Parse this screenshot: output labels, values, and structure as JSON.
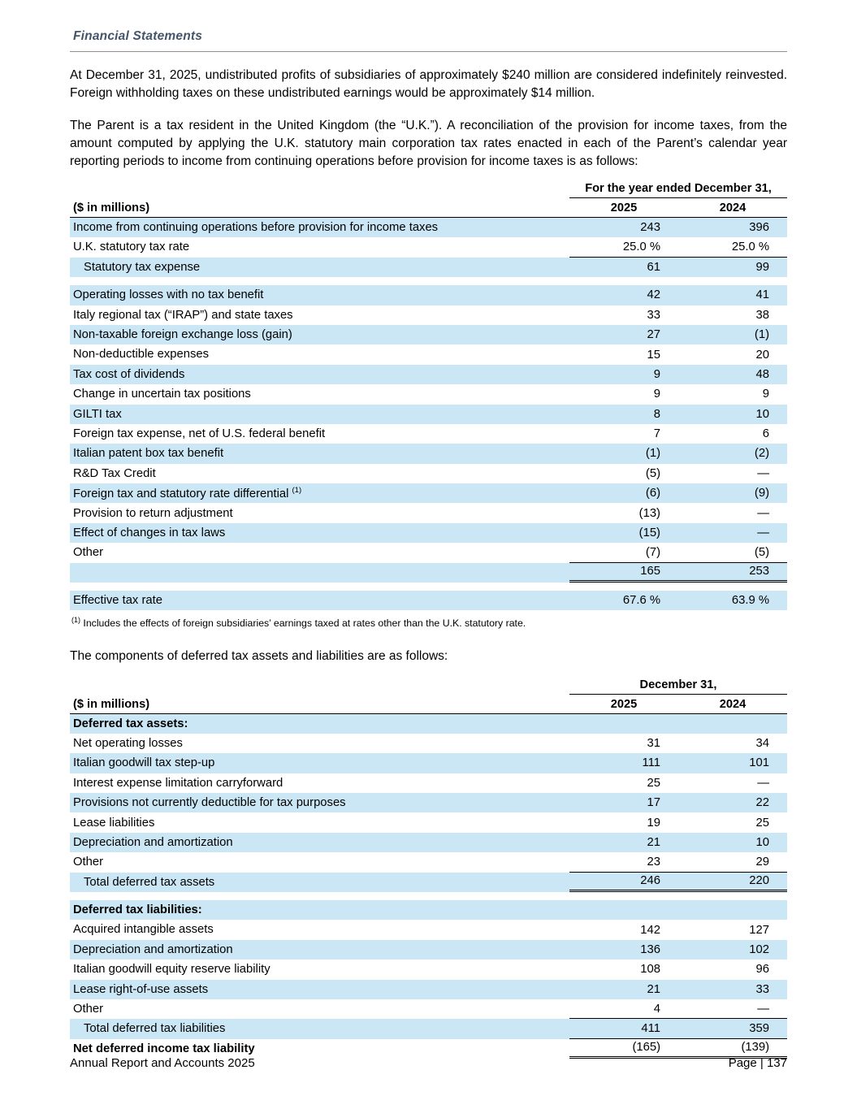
{
  "page": {
    "header_title": "Financial Statements",
    "footer_left": "Annual Report and Accounts 2025",
    "footer_right": "Page | 137"
  },
  "colors": {
    "row_highlight": "#cbe7f5",
    "header_title": "#44546a"
  },
  "paragraphs": {
    "p1": "At December 31, 2025, undistributed profits of subsidiaries of approximately $240 million are considered indefinitely reinvested. Foreign withholding taxes on these undistributed earnings would be approximately $14 million.",
    "p2": "The Parent is a tax resident in the United Kingdom (the “U.K.”). A reconciliation of the provision for income taxes, from the amount computed by applying the U.K. statutory main corporation tax rates enacted in each of the Parent’s calendar year reporting periods to income from continuing operations before provision for income taxes is as follows:",
    "p3": "The components of deferred tax assets and liabilities are as follows:"
  },
  "table1": {
    "span_header": "For the year ended December 31,",
    "col_label": "($ in millions)",
    "col_2025": "2025",
    "col_2024": "2024",
    "rows": [
      {
        "label": "Income from continuing operations before provision for income taxes",
        "v2025": "243",
        "v2024": "396",
        "shaded": true
      },
      {
        "label": "U.K. statutory tax rate",
        "v2025": "25.0 %",
        "v2024": "25.0 %",
        "rule": "single"
      },
      {
        "label": "Statutory tax expense",
        "v2025": "61",
        "v2024": "99",
        "shaded": true,
        "indent": true
      },
      {
        "gap": true
      },
      {
        "label": "Operating losses with no tax benefit",
        "v2025": "42",
        "v2024": "41",
        "shaded": true
      },
      {
        "label": "Italy regional tax (“IRAP”) and state taxes",
        "v2025": "33",
        "v2024": "38"
      },
      {
        "label": "Non-taxable foreign exchange loss (gain)",
        "v2025": "27",
        "v2024": "(1)",
        "shaded": true
      },
      {
        "label": "Non-deductible expenses",
        "v2025": "15",
        "v2024": "20"
      },
      {
        "label": "Tax cost of dividends",
        "v2025": "9",
        "v2024": "48",
        "shaded": true
      },
      {
        "label": "Change in uncertain tax positions",
        "v2025": "9",
        "v2024": "9"
      },
      {
        "label": "GILTI tax",
        "v2025": "8",
        "v2024": "10",
        "shaded": true
      },
      {
        "label": "Foreign tax expense, net of U.S. federal benefit",
        "v2025": "7",
        "v2024": "6"
      },
      {
        "label": "Italian patent box tax benefit",
        "v2025": "(1)",
        "v2024": "(2)",
        "shaded": true
      },
      {
        "label": "R&D Tax Credit",
        "v2025": "(5)",
        "v2024": "—"
      },
      {
        "label": "Foreign tax and statutory rate differential ",
        "sup": "(1)",
        "v2025": "(6)",
        "v2024": "(9)",
        "shaded": true
      },
      {
        "label": "Provision to return adjustment",
        "v2025": "(13)",
        "v2024": "—"
      },
      {
        "label": "Effect of changes in tax laws",
        "v2025": "(15)",
        "v2024": "—",
        "shaded": true
      },
      {
        "label": "Other",
        "v2025": "(7)",
        "v2024": "(5)",
        "rule": "single"
      },
      {
        "label": "",
        "v2025": "165",
        "v2024": "253",
        "shaded": true,
        "rule": "double"
      },
      {
        "gap": true
      },
      {
        "label": "Effective tax rate",
        "v2025": "67.6 %",
        "v2024": "63.9 %",
        "shaded": true
      }
    ],
    "footnote_sup": "(1)",
    "footnote_text": " Includes the effects of foreign subsidiaries’ earnings taxed at rates other than the U.K. statutory rate."
  },
  "table2": {
    "span_header": "December 31,",
    "col_label": "($ in millions)",
    "col_2025": "2025",
    "col_2024": "2024",
    "rows": [
      {
        "label": "Deferred tax assets:",
        "v2025": "",
        "v2024": "",
        "shaded": true,
        "bold": true
      },
      {
        "label": "Net operating losses",
        "v2025": "31",
        "v2024": "34"
      },
      {
        "label": "Italian goodwill tax step-up",
        "v2025": "111",
        "v2024": "101",
        "shaded": true
      },
      {
        "label": "Interest expense limitation carryforward",
        "v2025": "25",
        "v2024": "—"
      },
      {
        "label": "Provisions not currently deductible for tax purposes",
        "v2025": "17",
        "v2024": "22",
        "shaded": true
      },
      {
        "label": "Lease liabilities",
        "v2025": "19",
        "v2024": "25"
      },
      {
        "label": "Depreciation and amortization",
        "v2025": "21",
        "v2024": "10",
        "shaded": true
      },
      {
        "label": "Other",
        "v2025": "23",
        "v2024": "29",
        "rule": "single"
      },
      {
        "label": "Total deferred tax assets",
        "v2025": "246",
        "v2024": "220",
        "shaded": true,
        "indent": true,
        "rule": "double"
      },
      {
        "gap": true
      },
      {
        "label": "Deferred tax liabilities:",
        "v2025": "",
        "v2024": "",
        "shaded": true,
        "bold": true
      },
      {
        "label": "Acquired intangible assets",
        "v2025": "142",
        "v2024": "127"
      },
      {
        "label": "Depreciation and amortization",
        "v2025": "136",
        "v2024": "102",
        "shaded": true
      },
      {
        "label": "Italian goodwill equity reserve liability",
        "v2025": "108",
        "v2024": "96"
      },
      {
        "label": "Lease right-of-use assets",
        "v2025": "21",
        "v2024": "33",
        "shaded": true
      },
      {
        "label": "Other",
        "v2025": "4",
        "v2024": "—",
        "rule": "single"
      },
      {
        "label": "Total deferred tax liabilities",
        "v2025": "411",
        "v2024": "359",
        "shaded": true,
        "indent": true,
        "rule": "single"
      },
      {
        "label": "Net deferred income tax liability",
        "v2025": "(165)",
        "v2024": "(139)",
        "bold": true,
        "rule": "double"
      }
    ]
  }
}
